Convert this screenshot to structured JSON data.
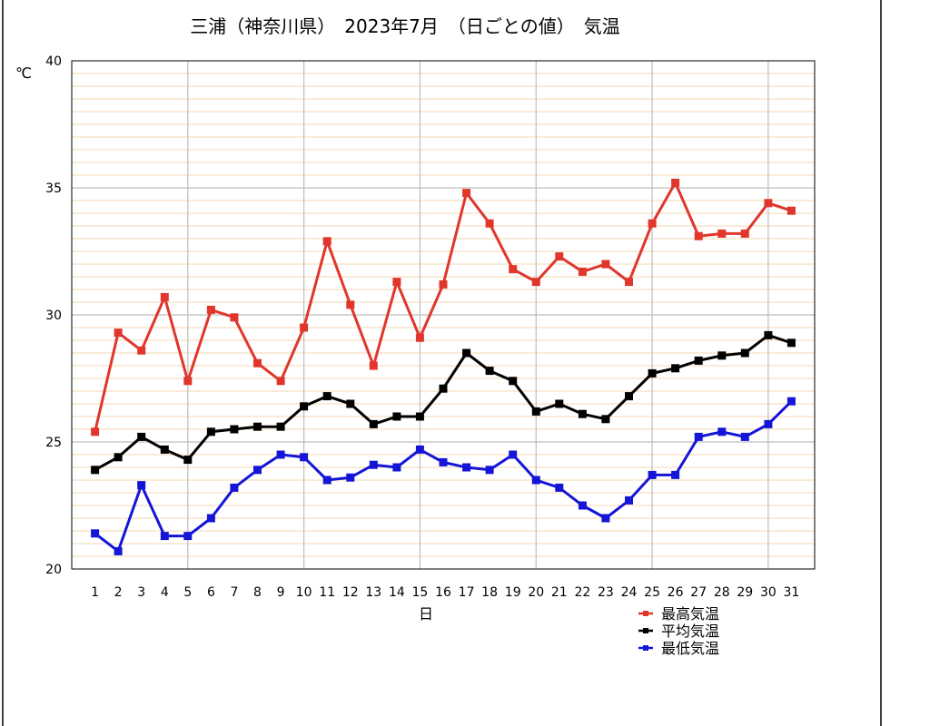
{
  "chart_data": {
    "type": "line",
    "title": "三浦（神奈川県）　2023年7月　（日ごとの値）　気温",
    "xlabel": "日",
    "ylabel": "℃",
    "x": [
      1,
      2,
      3,
      4,
      5,
      6,
      7,
      8,
      9,
      10,
      11,
      12,
      13,
      14,
      15,
      16,
      17,
      18,
      19,
      20,
      21,
      22,
      23,
      24,
      25,
      26,
      27,
      28,
      29,
      30,
      31
    ],
    "xlim": [
      0,
      32
    ],
    "ylim": [
      20,
      40
    ],
    "yticks": [
      20,
      25,
      30,
      35,
      40
    ],
    "grid": true,
    "legend_position": "bottom-right",
    "series": [
      {
        "name": "最高気温",
        "color": "#e0362c",
        "values": [
          25.4,
          29.3,
          28.6,
          30.7,
          27.4,
          30.2,
          29.9,
          28.1,
          27.4,
          29.5,
          32.9,
          30.4,
          28.0,
          31.3,
          29.1,
          31.2,
          34.8,
          33.6,
          31.8,
          31.3,
          32.3,
          31.7,
          32.0,
          31.3,
          33.6,
          35.2,
          33.1,
          33.2,
          33.2,
          34.4,
          34.1
        ]
      },
      {
        "name": "平均気温",
        "color": "#000000",
        "values": [
          23.9,
          24.4,
          25.2,
          24.7,
          24.3,
          25.4,
          25.5,
          25.6,
          25.6,
          26.4,
          26.8,
          26.5,
          25.7,
          26.0,
          26.0,
          27.1,
          28.5,
          27.8,
          27.4,
          26.2,
          26.5,
          26.1,
          25.9,
          26.8,
          27.7,
          27.9,
          28.2,
          28.4,
          28.5,
          29.2,
          28.9
        ]
      },
      {
        "name": "最低気温",
        "color": "#1515d8",
        "values": [
          21.4,
          20.7,
          23.3,
          21.3,
          21.3,
          22.0,
          23.2,
          23.9,
          24.5,
          24.4,
          23.5,
          23.6,
          24.1,
          24.0,
          24.7,
          24.2,
          24.0,
          23.9,
          24.5,
          23.5,
          23.2,
          22.5,
          22.0,
          22.7,
          23.7,
          23.7,
          25.2,
          25.4,
          25.2,
          25.7,
          26.6
        ]
      }
    ]
  }
}
